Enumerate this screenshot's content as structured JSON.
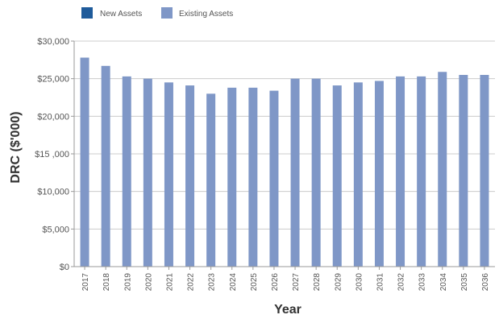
{
  "chart_data": {
    "type": "bar",
    "title": "",
    "xlabel": "Year",
    "ylabel": "DRC ($'000)",
    "categories": [
      "2017",
      "2018",
      "2019",
      "2020",
      "2021",
      "2022",
      "2023",
      "2024",
      "2025",
      "2026",
      "2027",
      "2028",
      "2029",
      "2030",
      "2031",
      "2032",
      "2033",
      "2034",
      "2035",
      "2036"
    ],
    "series": [
      {
        "name": "New Assets",
        "color": "#1f5b9b",
        "values": [
          0,
          0,
          0,
          0,
          0,
          0,
          0,
          0,
          0,
          0,
          0,
          0,
          0,
          0,
          0,
          0,
          0,
          0,
          0,
          0
        ]
      },
      {
        "name": "Existing Assets",
        "color": "#7f97c7",
        "values": [
          27800,
          26700,
          25300,
          25000,
          24500,
          24100,
          23000,
          23800,
          23800,
          23400,
          25000,
          25000,
          24100,
          24500,
          24700,
          25300,
          25300,
          25900,
          25500,
          25500
        ]
      }
    ],
    "ylim": [
      0,
      30000
    ],
    "yticks": [
      0,
      5000,
      10000,
      15000,
      20000,
      25000,
      30000
    ],
    "ytick_labels": [
      "$0",
      "$5,000",
      "$10,000",
      "$15 ,000",
      "$20,000",
      "$25,000",
      "$30,000"
    ],
    "grid": true,
    "legend_position": "top-left",
    "gridline_color": "#cccccc",
    "axis_color": "#9a9a9a",
    "text_color": "#555555",
    "label_color": "#333333"
  }
}
